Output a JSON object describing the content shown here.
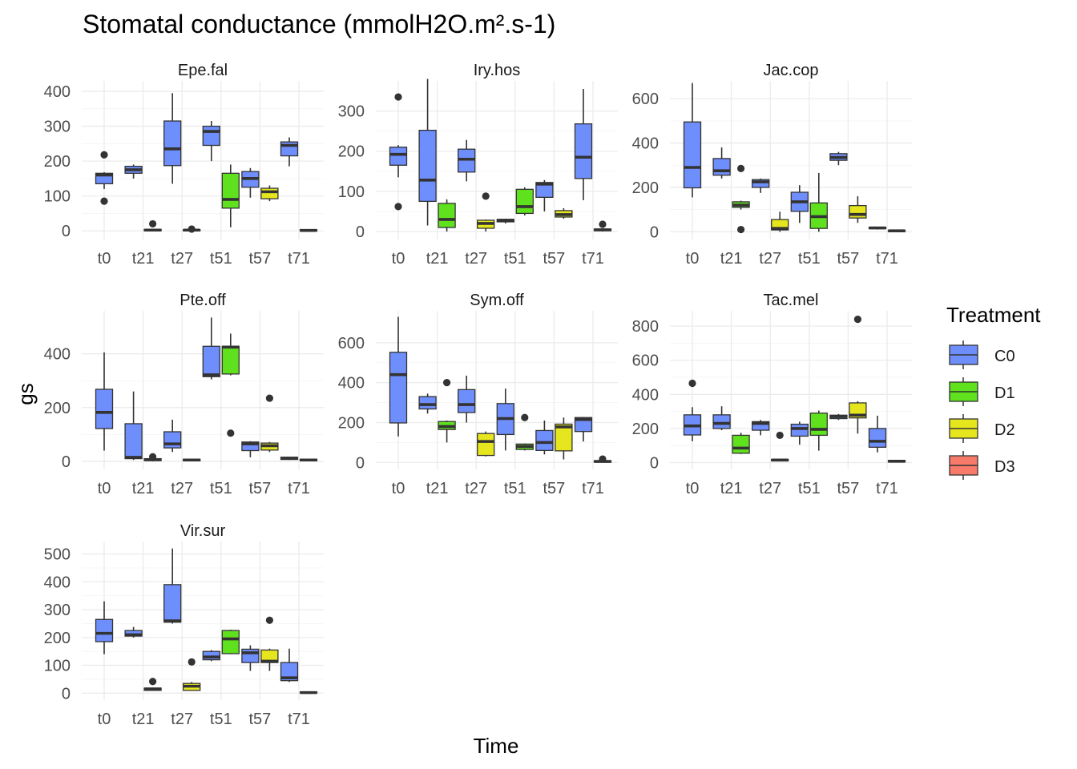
{
  "chart_data": {
    "type": "boxplot",
    "title": "Stomatal conductance (mmolH2O.m².s-1)",
    "xlabel": "Time",
    "ylabel": "gs",
    "categories": [
      "t0",
      "t21",
      "t27",
      "t51",
      "t57",
      "t71"
    ],
    "legend": {
      "title": "Treatment",
      "position": "right",
      "items": [
        {
          "name": "C0",
          "color": "#6E8EFB"
        },
        {
          "name": "D1",
          "color": "#5FE11E"
        },
        {
          "name": "D2",
          "color": "#E6E61E"
        },
        {
          "name": "D3",
          "color": "#F87A6A"
        }
      ]
    },
    "facets": [
      {
        "name": "Epe.fal",
        "ylim": [
          -25,
          430
        ],
        "yticks": [
          0,
          100,
          200,
          300,
          400
        ],
        "boxes": [
          {
            "x": "t0",
            "group": "C0",
            "min": 120,
            "q1": 135,
            "median": 160,
            "q3": 165,
            "max": 168,
            "outliers": [
              85,
              218
            ]
          },
          {
            "x": "t21",
            "group": "C0",
            "min": 150,
            "q1": 165,
            "median": 175,
            "q3": 185,
            "max": 190,
            "outliers": []
          },
          {
            "x": "t21",
            "group": "D1",
            "min": 0,
            "q1": 0,
            "median": 2,
            "q3": 4,
            "max": 5,
            "outliers": [
              20
            ]
          },
          {
            "x": "t27",
            "group": "C0",
            "min": 135,
            "q1": 187,
            "median": 235,
            "q3": 315,
            "max": 395,
            "outliers": []
          },
          {
            "x": "t27",
            "group": "D1",
            "min": 0,
            "q1": 0,
            "median": 2,
            "q3": 3,
            "max": 4,
            "outliers": [
              5
            ]
          },
          {
            "x": "t51",
            "group": "C0",
            "min": 200,
            "q1": 245,
            "median": 285,
            "q3": 300,
            "max": 315,
            "outliers": []
          },
          {
            "x": "t51",
            "group": "D1",
            "min": 10,
            "q1": 65,
            "median": 90,
            "q3": 165,
            "max": 190,
            "outliers": []
          },
          {
            "x": "t57",
            "group": "C0",
            "min": 95,
            "q1": 125,
            "median": 150,
            "q3": 170,
            "max": 180,
            "outliers": []
          },
          {
            "x": "t57",
            "group": "D2",
            "min": 85,
            "q1": 92,
            "median": 112,
            "q3": 122,
            "max": 130,
            "outliers": []
          },
          {
            "x": "t71",
            "group": "C0",
            "min": 185,
            "q1": 215,
            "median": 245,
            "q3": 255,
            "max": 268,
            "outliers": []
          },
          {
            "x": "t71",
            "group": "D1",
            "min": 0,
            "q1": 0,
            "median": 1,
            "q3": 3,
            "max": 4,
            "outliers": []
          }
        ]
      },
      {
        "name": "Iry.hos",
        "ylim": [
          -20,
          375
        ],
        "yticks": [
          0,
          100,
          200,
          300
        ],
        "boxes": [
          {
            "x": "t0",
            "group": "C0",
            "min": 135,
            "q1": 165,
            "median": 192,
            "q3": 210,
            "max": 215,
            "outliers": [
              62,
              335
            ]
          },
          {
            "x": "t21",
            "group": "C0",
            "min": 15,
            "q1": 75,
            "median": 128,
            "q3": 252,
            "max": 380,
            "outliers": []
          },
          {
            "x": "t21",
            "group": "D1",
            "min": 0,
            "q1": 10,
            "median": 30,
            "q3": 70,
            "max": 80,
            "outliers": []
          },
          {
            "x": "t27",
            "group": "C0",
            "min": 125,
            "q1": 148,
            "median": 180,
            "q3": 205,
            "max": 228,
            "outliers": []
          },
          {
            "x": "t27",
            "group": "D2",
            "min": 0,
            "q1": 8,
            "median": 20,
            "q3": 28,
            "max": 30,
            "outliers": [
              88
            ]
          },
          {
            "x": "t51",
            "group": "C0",
            "min": 20,
            "q1": 24,
            "median": 28,
            "q3": 30,
            "max": 32,
            "outliers": []
          },
          {
            "x": "t51",
            "group": "D1",
            "min": 40,
            "q1": 45,
            "median": 62,
            "q3": 105,
            "max": 110,
            "outliers": []
          },
          {
            "x": "t57",
            "group": "C0",
            "min": 50,
            "q1": 85,
            "median": 118,
            "q3": 122,
            "max": 128,
            "outliers": []
          },
          {
            "x": "t57",
            "group": "D2",
            "min": 32,
            "q1": 36,
            "median": 42,
            "q3": 52,
            "max": 58,
            "outliers": []
          },
          {
            "x": "t71",
            "group": "C0",
            "min": 78,
            "q1": 132,
            "median": 185,
            "q3": 268,
            "max": 355,
            "outliers": []
          },
          {
            "x": "t71",
            "group": "D1",
            "min": 0,
            "q1": 2,
            "median": 4,
            "q3": 6,
            "max": 8,
            "outliers": [
              18
            ]
          }
        ]
      },
      {
        "name": "Jac.cop",
        "ylim": [
          -35,
          680
        ],
        "yticks": [
          0,
          200,
          400,
          600
        ],
        "boxes": [
          {
            "x": "t0",
            "group": "C0",
            "min": 155,
            "q1": 198,
            "median": 290,
            "q3": 495,
            "max": 670,
            "outliers": []
          },
          {
            "x": "t21",
            "group": "C0",
            "min": 240,
            "q1": 255,
            "median": 275,
            "q3": 330,
            "max": 380,
            "outliers": []
          },
          {
            "x": "t21",
            "group": "D1",
            "min": 100,
            "q1": 110,
            "median": 120,
            "q3": 135,
            "max": 140,
            "outliers": [
              10,
              285
            ]
          },
          {
            "x": "t27",
            "group": "C0",
            "min": 175,
            "q1": 200,
            "median": 225,
            "q3": 235,
            "max": 240,
            "outliers": []
          },
          {
            "x": "t27",
            "group": "D2",
            "min": 0,
            "q1": 8,
            "median": 15,
            "q3": 55,
            "max": 90,
            "outliers": []
          },
          {
            "x": "t51",
            "group": "C0",
            "min": 40,
            "q1": 92,
            "median": 135,
            "q3": 178,
            "max": 210,
            "outliers": []
          },
          {
            "x": "t51",
            "group": "D1",
            "min": 0,
            "q1": 15,
            "median": 68,
            "q3": 130,
            "max": 265,
            "outliers": []
          },
          {
            "x": "t57",
            "group": "C0",
            "min": 300,
            "q1": 322,
            "median": 335,
            "q3": 352,
            "max": 360,
            "outliers": []
          },
          {
            "x": "t57",
            "group": "D2",
            "min": 40,
            "q1": 62,
            "median": 78,
            "q3": 118,
            "max": 160,
            "outliers": []
          },
          {
            "x": "t71",
            "group": "C0",
            "min": 10,
            "q1": 14,
            "median": 17,
            "q3": 20,
            "max": 22,
            "outliers": []
          },
          {
            "x": "t71",
            "group": "D1",
            "min": 0,
            "q1": 2,
            "median": 4,
            "q3": 6,
            "max": 8,
            "outliers": []
          }
        ]
      },
      {
        "name": "Pte.off",
        "ylim": [
          -30,
          560
        ],
        "yticks": [
          0,
          200,
          400
        ],
        "boxes": [
          {
            "x": "t0",
            "group": "C0",
            "min": 40,
            "q1": 122,
            "median": 182,
            "q3": 268,
            "max": 405,
            "outliers": []
          },
          {
            "x": "t21",
            "group": "C0",
            "min": 5,
            "q1": 10,
            "median": 15,
            "q3": 140,
            "max": 260,
            "outliers": []
          },
          {
            "x": "t21",
            "group": "D1",
            "min": 0,
            "q1": 3,
            "median": 6,
            "q3": 10,
            "max": 12,
            "outliers": [
              17
            ]
          },
          {
            "x": "t27",
            "group": "C0",
            "min": 35,
            "q1": 50,
            "median": 65,
            "q3": 110,
            "max": 155,
            "outliers": []
          },
          {
            "x": "t27",
            "group": "D1",
            "min": 0,
            "q1": 2,
            "median": 5,
            "q3": 8,
            "max": 10,
            "outliers": []
          },
          {
            "x": "t51",
            "group": "C0",
            "min": 305,
            "q1": 315,
            "median": 322,
            "q3": 428,
            "max": 535,
            "outliers": []
          },
          {
            "x": "t51",
            "group": "D1",
            "min": 320,
            "q1": 325,
            "median": 425,
            "q3": 428,
            "max": 475,
            "outliers": [
              105
            ]
          },
          {
            "x": "t57",
            "group": "C0",
            "min": 15,
            "q1": 40,
            "median": 65,
            "q3": 72,
            "max": 75,
            "outliers": []
          },
          {
            "x": "t57",
            "group": "D2",
            "min": 35,
            "q1": 42,
            "median": 58,
            "q3": 68,
            "max": 72,
            "outliers": [
              235
            ]
          },
          {
            "x": "t71",
            "group": "C0",
            "min": 5,
            "q1": 7,
            "median": 12,
            "q3": 15,
            "max": 16,
            "outliers": []
          },
          {
            "x": "t71",
            "group": "D1",
            "min": 0,
            "q1": 2,
            "median": 5,
            "q3": 8,
            "max": 10,
            "outliers": []
          }
        ]
      },
      {
        "name": "Sym.off",
        "ylim": [
          -35,
          760
        ],
        "yticks": [
          0,
          200,
          400,
          600
        ],
        "boxes": [
          {
            "x": "t0",
            "group": "C0",
            "min": 130,
            "q1": 198,
            "median": 440,
            "q3": 552,
            "max": 730,
            "outliers": []
          },
          {
            "x": "t21",
            "group": "C0",
            "min": 245,
            "q1": 268,
            "median": 290,
            "q3": 330,
            "max": 345,
            "outliers": []
          },
          {
            "x": "t21",
            "group": "D1",
            "min": 100,
            "q1": 165,
            "median": 180,
            "q3": 205,
            "max": 210,
            "outliers": [
              400
            ]
          },
          {
            "x": "t27",
            "group": "C0",
            "min": 200,
            "q1": 250,
            "median": 290,
            "q3": 365,
            "max": 435,
            "outliers": []
          },
          {
            "x": "t27",
            "group": "D2",
            "min": 30,
            "q1": 35,
            "median": 105,
            "q3": 145,
            "max": 155,
            "outliers": []
          },
          {
            "x": "t51",
            "group": "C0",
            "min": 60,
            "q1": 140,
            "median": 220,
            "q3": 295,
            "max": 370,
            "outliers": []
          },
          {
            "x": "t51",
            "group": "D1",
            "min": 60,
            "q1": 65,
            "median": 80,
            "q3": 92,
            "max": 95,
            "outliers": [
              225
            ]
          },
          {
            "x": "t57",
            "group": "C0",
            "min": 40,
            "q1": 60,
            "median": 100,
            "q3": 160,
            "max": 210,
            "outliers": []
          },
          {
            "x": "t57",
            "group": "D2",
            "min": 15,
            "q1": 58,
            "median": 178,
            "q3": 192,
            "max": 225,
            "outliers": []
          },
          {
            "x": "t71",
            "group": "C0",
            "min": 105,
            "q1": 155,
            "median": 215,
            "q3": 225,
            "max": 228,
            "outliers": []
          },
          {
            "x": "t71",
            "group": "D1",
            "min": 0,
            "q1": 2,
            "median": 5,
            "q3": 8,
            "max": 10,
            "outliers": [
              17
            ]
          }
        ]
      },
      {
        "name": "Tac.mel",
        "ylim": [
          -40,
          890
        ],
        "yticks": [
          0,
          200,
          400,
          600,
          800
        ],
        "boxes": [
          {
            "x": "t0",
            "group": "C0",
            "min": 125,
            "q1": 162,
            "median": 215,
            "q3": 280,
            "max": 325,
            "outliers": [
              465
            ]
          },
          {
            "x": "t21",
            "group": "C0",
            "min": 190,
            "q1": 200,
            "median": 230,
            "q3": 280,
            "max": 330,
            "outliers": []
          },
          {
            "x": "t21",
            "group": "D1",
            "min": 50,
            "q1": 55,
            "median": 85,
            "q3": 160,
            "max": 175,
            "outliers": []
          },
          {
            "x": "t27",
            "group": "C0",
            "min": 160,
            "q1": 190,
            "median": 230,
            "q3": 240,
            "max": 250,
            "outliers": []
          },
          {
            "x": "t27",
            "group": "D2",
            "min": 8,
            "q1": 10,
            "median": 15,
            "q3": 18,
            "max": 20,
            "outliers": [
              160
            ]
          },
          {
            "x": "t51",
            "group": "C0",
            "min": 105,
            "q1": 155,
            "median": 200,
            "q3": 225,
            "max": 240,
            "outliers": []
          },
          {
            "x": "t51",
            "group": "D1",
            "min": 70,
            "q1": 160,
            "median": 195,
            "q3": 290,
            "max": 305,
            "outliers": []
          },
          {
            "x": "t57",
            "group": "C0",
            "min": 250,
            "q1": 258,
            "median": 270,
            "q3": 278,
            "max": 285,
            "outliers": []
          },
          {
            "x": "t57",
            "group": "D2",
            "min": 170,
            "q1": 262,
            "median": 278,
            "q3": 350,
            "max": 360,
            "outliers": [
              840
            ]
          },
          {
            "x": "t71",
            "group": "C0",
            "min": 60,
            "q1": 90,
            "median": 125,
            "q3": 200,
            "max": 275,
            "outliers": []
          },
          {
            "x": "t71",
            "group": "D1",
            "min": 0,
            "q1": 4,
            "median": 8,
            "q3": 12,
            "max": 14,
            "outliers": []
          }
        ]
      },
      {
        "name": "Vir.sur",
        "ylim": [
          -25,
          545
        ],
        "yticks": [
          0,
          100,
          200,
          300,
          400,
          500
        ],
        "boxes": [
          {
            "x": "t0",
            "group": "C0",
            "min": 140,
            "q1": 185,
            "median": 215,
            "q3": 265,
            "max": 330,
            "outliers": []
          },
          {
            "x": "t21",
            "group": "C0",
            "min": 200,
            "q1": 205,
            "median": 210,
            "q3": 225,
            "max": 238,
            "outliers": []
          },
          {
            "x": "t21",
            "group": "D1",
            "min": 8,
            "q1": 10,
            "median": 15,
            "q3": 18,
            "max": 20,
            "outliers": [
              42
            ]
          },
          {
            "x": "t27",
            "group": "C0",
            "min": 250,
            "q1": 255,
            "median": 260,
            "q3": 390,
            "max": 520,
            "outliers": []
          },
          {
            "x": "t27",
            "group": "D2",
            "min": 8,
            "q1": 10,
            "median": 25,
            "q3": 35,
            "max": 40,
            "outliers": [
              112
            ]
          },
          {
            "x": "t51",
            "group": "C0",
            "min": 115,
            "q1": 120,
            "median": 130,
            "q3": 150,
            "max": 155,
            "outliers": []
          },
          {
            "x": "t51",
            "group": "D1",
            "min": 140,
            "q1": 142,
            "median": 195,
            "q3": 225,
            "max": 228,
            "outliers": []
          },
          {
            "x": "t57",
            "group": "C0",
            "min": 80,
            "q1": 110,
            "median": 145,
            "q3": 158,
            "max": 172,
            "outliers": []
          },
          {
            "x": "t57",
            "group": "D2",
            "min": 80,
            "q1": 110,
            "median": 115,
            "q3": 155,
            "max": 160,
            "outliers": [
              262
            ]
          },
          {
            "x": "t71",
            "group": "C0",
            "min": 40,
            "q1": 45,
            "median": 55,
            "q3": 110,
            "max": 160,
            "outliers": []
          },
          {
            "x": "t71",
            "group": "D1",
            "min": 0,
            "q1": 1,
            "median": 2,
            "q3": 4,
            "max": 5,
            "outliers": []
          }
        ]
      }
    ]
  }
}
